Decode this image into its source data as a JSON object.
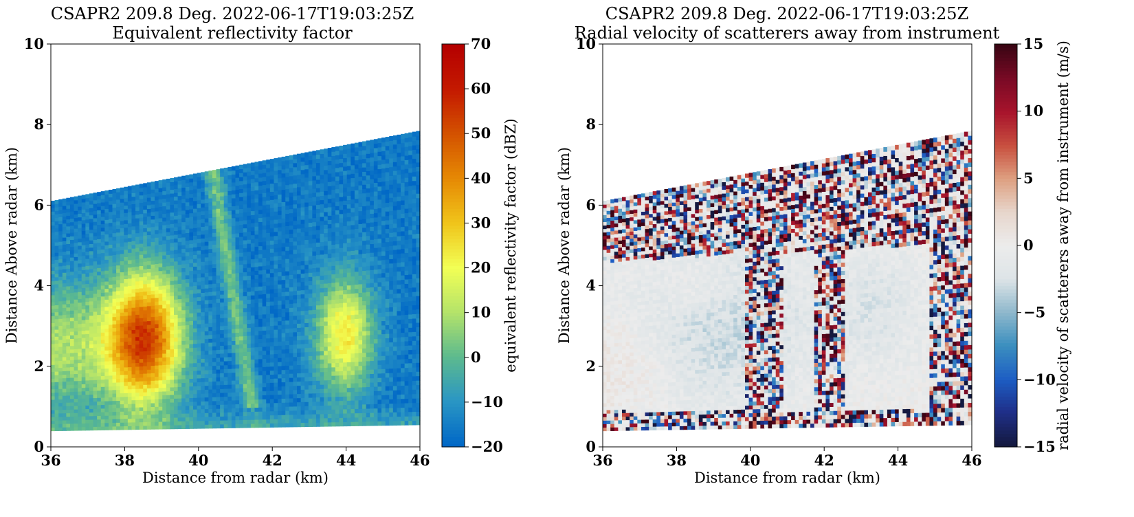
{
  "chart_data": [
    {
      "type": "heatmap",
      "id": "refl",
      "title": "CSAPR2 209.8 Deg. 2022-06-17T19:03:25Z",
      "subtitle": "Equivalent reflectivity factor",
      "xlabel": "Distance from radar (km)",
      "ylabel": "Distance Above radar  (km)",
      "xlim": [
        36,
        46
      ],
      "ylim": [
        0,
        10
      ],
      "xticks": [
        "36",
        "38",
        "40",
        "42",
        "44",
        "46"
      ],
      "yticks": [
        "0",
        "2",
        "4",
        "6",
        "8",
        "10"
      ],
      "colorbar": {
        "label": "equivalent reflectivity factor (dBZ)",
        "range": [
          -20,
          70
        ],
        "ticks": [
          "−20",
          "−10",
          "0",
          "10",
          "20",
          "30",
          "40",
          "50",
          "60",
          "70"
        ],
        "colormap": [
          "#0067c6",
          "#2a96c4",
          "#5dba8e",
          "#b4e36a",
          "#f2ff55",
          "#f0c51b",
          "#e68a04",
          "#d45300",
          "#c41a00",
          "#b50000"
        ]
      },
      "data_coverage": {
        "bottom_height_km": [
          0.4,
          0.55
        ],
        "top_height_km": [
          6.1,
          7.85
        ]
      },
      "features": [
        {
          "kind": "cell",
          "x_km": 38.5,
          "y_km": 2.7,
          "peak_value": 45
        },
        {
          "kind": "cell",
          "x_km": 44.0,
          "y_km": 2.8,
          "peak_value": 18
        },
        {
          "kind": "weak_layer",
          "x_km": 37.0,
          "y_km": 2.5,
          "peak_value": 15
        },
        {
          "kind": "streak",
          "x_range_km": [
            40.4,
            41.8
          ],
          "value": 0
        }
      ]
    },
    {
      "type": "heatmap",
      "id": "vel",
      "title": "CSAPR2 209.8 Deg. 2022-06-17T19:03:25Z",
      "subtitle": "Radial velocity of scatterers away from instrument",
      "xlabel": "Distance from radar (km)",
      "ylabel": "Distance Above radar  (km)",
      "xlim": [
        36,
        46
      ],
      "ylim": [
        0,
        10
      ],
      "xticks": [
        "36",
        "38",
        "40",
        "42",
        "44",
        "46"
      ],
      "yticks": [
        "0",
        "2",
        "4",
        "6",
        "8",
        "10"
      ],
      "colorbar": {
        "label": "radial velocity of scatterers away from instrument (m/s)",
        "range": [
          -15,
          15
        ],
        "ticks": [
          "−15",
          "−10",
          "−5",
          "0",
          "5",
          "10",
          "15"
        ],
        "colormap": [
          "#14193f",
          "#1f2f88",
          "#1d5ec4",
          "#3b8fbf",
          "#8fb8cc",
          "#dde4e7",
          "#ececec",
          "#e7d6cc",
          "#dea081",
          "#c8503f",
          "#a8142c",
          "#7a0a25",
          "#3b0514"
        ]
      },
      "data_coverage": {
        "bottom_height_km": [
          0.4,
          0.55
        ],
        "top_height_km": [
          6.1,
          7.85
        ]
      },
      "features": [
        {
          "kind": "noisy_band",
          "x_range_km": [
            39.9,
            40.9
          ]
        },
        {
          "kind": "noisy_band",
          "x_range_km": [
            41.7,
            42.6
          ]
        },
        {
          "kind": "noisy_band",
          "x_range_km": [
            44.9,
            46.0
          ]
        },
        {
          "kind": "noisy_top",
          "above_km": 4.6
        },
        {
          "kind": "smooth_region",
          "x_range_km": [
            36,
            39.8
          ],
          "value": -2
        }
      ]
    }
  ]
}
